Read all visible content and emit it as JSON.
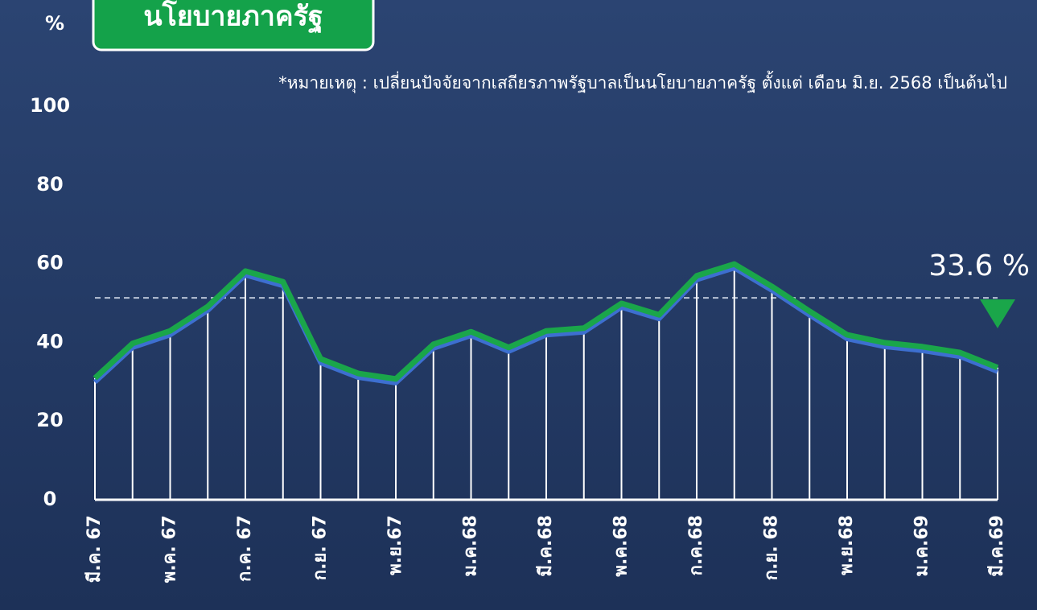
{
  "chart_data": {
    "type": "line",
    "title": "นโยบายภาครัฐ",
    "y_label": "%",
    "note": "*หมายเหตุ : เปลี่ยนปัจจัยจากเสถียรภาพรัฐบาลเป็นนโยบายภาครัฐ ตั้งแต่ เดือน มิ.ย. 2568 เป็นต้นไป",
    "annotation": "33.6 %",
    "categories": [
      "มี.ค. 67",
      null,
      "พ.ค. 67",
      null,
      "ก.ค. 67",
      null,
      "ก.ย. 67",
      null,
      "พ.ย.67",
      null,
      "ม.ค.68",
      null,
      "มี.ค.68",
      null,
      "พ.ค.68",
      null,
      "ก.ค.68",
      null,
      "ก.ย. 68",
      null,
      "พ.ย.68",
      null,
      "ม.ค.69",
      null,
      "มี.ค.69"
    ],
    "values": [
      30.9,
      39.7,
      42.9,
      49.1,
      58.1,
      55.4,
      35.8,
      32.1,
      30.7,
      39.5,
      42.7,
      38.7,
      42.9,
      43.6,
      49.9,
      47.0,
      56.9,
      59.9,
      54.2,
      47.9,
      41.9,
      39.9,
      38.9,
      37.4,
      33.6
    ],
    "color": "#1aa64a",
    "reference_value": 51.3,
    "ylim": [
      0,
      100
    ],
    "yticks": [
      0,
      20,
      40,
      60,
      80,
      100
    ]
  }
}
